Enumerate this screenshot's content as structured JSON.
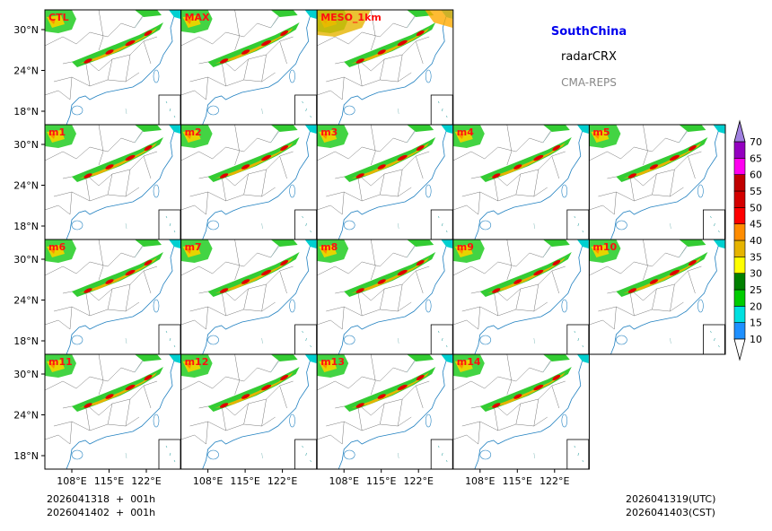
{
  "chart_data": {
    "type": "heatmap",
    "title": "SouthChina",
    "subtitle": "radarCRX",
    "source": "CMA-REPS",
    "panels": [
      "CTL",
      "MAX",
      "MESO_1km",
      "m1",
      "m2",
      "m3",
      "m4",
      "m5",
      "m6",
      "m7",
      "m8",
      "m9",
      "m10",
      "m11",
      "m12",
      "m13",
      "m14"
    ],
    "y_ticks": [
      "30°N",
      "24°N",
      "18°N"
    ],
    "x_ticks": [
      "108°E",
      "115°E",
      "122°E"
    ],
    "colorbar": {
      "levels": [
        "10",
        "15",
        "20",
        "25",
        "30",
        "35",
        "40",
        "45",
        "50",
        "55",
        "60",
        "65",
        "70"
      ],
      "colors": [
        "#1e90ff",
        "#00e0e0",
        "#00cc00",
        "#008000",
        "#ffff00",
        "#e6b400",
        "#ff8c00",
        "#ff0000",
        "#d40000",
        "#c00000",
        "#ff00f0",
        "#9400c0"
      ],
      "over_color": "#a080e0",
      "under_color": "#ffffff",
      "extend": "both"
    },
    "footer_left": [
      "2026041318  +  001h",
      "2026041402  +  001h"
    ],
    "footer_right": [
      "2026041319(UTC)",
      "2026041403(CST)"
    ],
    "label_color": "#ff1010",
    "title_color": "#0000ee"
  }
}
